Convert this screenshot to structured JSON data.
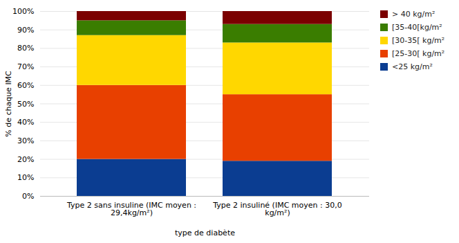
{
  "chart_data": {
    "type": "bar",
    "stacked": true,
    "categories": [
      "Type 2 sans insuline (IMC moyen :\n29,4kg/m²)",
      "Type 2 insuliné (IMC moyen : 30,0\nkg/m²)"
    ],
    "series": [
      {
        "name": "> 40 kg/m²",
        "color": "#7b0000",
        "values": [
          5,
          7
        ]
      },
      {
        "name": "[35-40[kg/m²",
        "color": "#3a7d00",
        "values": [
          8,
          10
        ]
      },
      {
        "name": "[30-35[ kg/m²",
        "color": "#ffd700",
        "values": [
          27,
          28
        ]
      },
      {
        "name": "[25-30[ kg/m²",
        "color": "#e84000",
        "values": [
          40,
          36
        ]
      },
      {
        "name": "<25 kg/m²",
        "color": "#0b3d91",
        "values": [
          20,
          19
        ]
      }
    ],
    "xlabel": "type de diabète",
    "ylabel": "% de chaque IMC",
    "ylim": [
      0,
      100
    ],
    "yticks": [
      {
        "value": 0,
        "label": "0%"
      },
      {
        "value": 10,
        "label": "10%"
      },
      {
        "value": 20,
        "label": "20%"
      },
      {
        "value": 30,
        "label": "30%"
      },
      {
        "value": 40,
        "label": "40%"
      },
      {
        "value": 50,
        "label": "50%"
      },
      {
        "value": 60,
        "label": "60%"
      },
      {
        "value": 70,
        "label": "70%"
      },
      {
        "value": 80,
        "label": "80%"
      },
      {
        "value": 90,
        "label": "90%"
      },
      {
        "value": 100,
        "label": "100%"
      }
    ],
    "grid": true,
    "legend": "right"
  }
}
